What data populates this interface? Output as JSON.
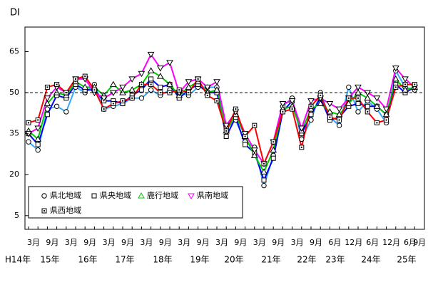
{
  "chart_data": {
    "type": "line",
    "y_axis_label": "DI",
    "categories": [
      "3月",
      null,
      "9月",
      null,
      "3月",
      null,
      "9月",
      null,
      "3月",
      null,
      "9月",
      null,
      "3月",
      null,
      "9月",
      null,
      "3月",
      null,
      "9月",
      null,
      "3月",
      null,
      "9月",
      null,
      "3月",
      null,
      "9月",
      null,
      "3月",
      null,
      "9月",
      null,
      "6月",
      null,
      "12月",
      null,
      "6月",
      null,
      "12月",
      null,
      "6月",
      "9月"
    ],
    "year_labels": [
      "H14年",
      "15年",
      "16年",
      "17年",
      "18年",
      "19年",
      "20年",
      "21年",
      "22年",
      "23年",
      "24年",
      "25年"
    ],
    "ylim": [
      0,
      74
    ],
    "yticks": [
      5,
      20,
      35,
      50,
      65
    ],
    "reference_line": 50,
    "series": [
      {
        "name": "県北地域",
        "color": "#33aaff",
        "marker": "circle",
        "values": [
          32,
          29,
          44,
          45,
          43,
          52,
          50,
          53,
          44,
          45,
          46,
          48,
          48,
          51,
          49,
          51,
          50,
          49,
          52,
          52,
          52,
          37,
          40,
          32,
          30,
          16,
          27,
          45,
          48,
          33,
          40,
          50,
          41,
          38,
          52,
          43,
          47,
          44,
          39,
          58,
          52,
          51
        ]
      },
      {
        "name": "県央地域",
        "color": "#0000ff",
        "marker": "square",
        "values": [
          35,
          31,
          42,
          49,
          48,
          53,
          51,
          51,
          47,
          47,
          46,
          49,
          51,
          55,
          52,
          53,
          48,
          51,
          53,
          50,
          50,
          34,
          41,
          31,
          28,
          18,
          26,
          43,
          47,
          35,
          42,
          48,
          40,
          41,
          45,
          46,
          45,
          45,
          42,
          53,
          50,
          52
        ]
      },
      {
        "name": "鹿行地域",
        "color": "#00cc00",
        "marker": "triangle-up",
        "values": [
          36,
          33,
          46,
          50,
          49,
          54,
          52,
          52,
          49,
          53,
          50,
          51,
          53,
          58,
          56,
          53,
          49,
          52,
          54,
          50,
          51,
          36,
          42,
          34,
          27,
          21,
          29,
          44,
          45,
          36,
          44,
          46,
          43,
          42,
          46,
          50,
          48,
          45,
          42,
          55,
          51,
          52
        ]
      },
      {
        "name": "県南地域",
        "color": "#ff00ff",
        "marker": "triangle-down",
        "values": [
          35,
          37,
          48,
          52,
          50,
          55,
          55,
          50,
          48,
          50,
          52,
          55,
          57,
          64,
          59,
          61,
          50,
          54,
          55,
          52,
          54,
          38,
          43,
          35,
          29,
          24,
          32,
          46,
          47,
          37,
          47,
          48,
          46,
          44,
          48,
          52,
          50,
          48,
          44,
          59,
          55,
          52
        ]
      },
      {
        "name": "県西地域",
        "color": "#ff0000",
        "marker": "square-dot",
        "values": [
          39,
          40,
          52,
          53,
          50,
          55,
          56,
          51,
          44,
          46,
          47,
          48,
          53,
          53,
          50,
          50,
          51,
          50,
          55,
          49,
          47,
          36,
          44,
          34,
          38,
          24,
          32,
          43,
          44,
          30,
          45,
          49,
          41,
          40,
          48,
          48,
          43,
          39,
          40,
          52,
          53,
          53
        ]
      }
    ]
  }
}
